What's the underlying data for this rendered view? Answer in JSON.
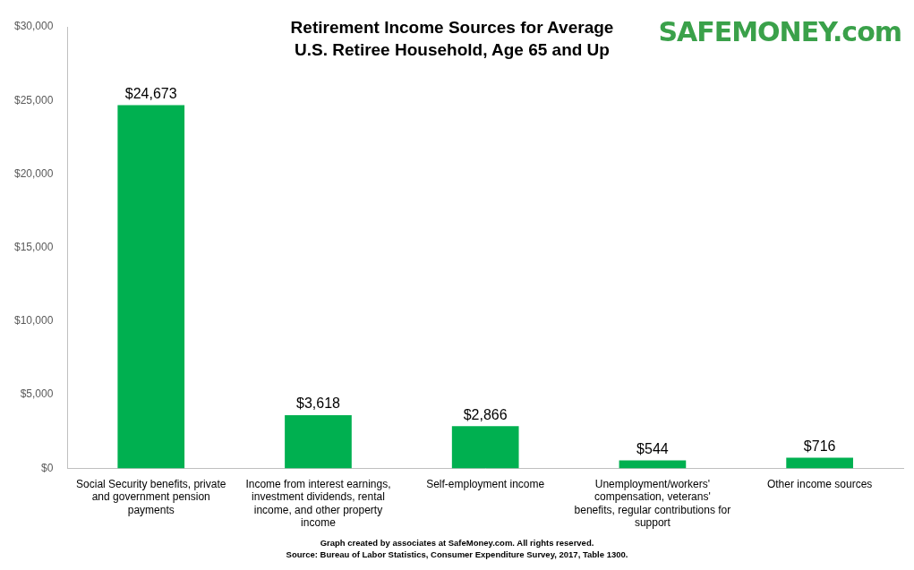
{
  "chart_data": {
    "type": "bar",
    "title": [
      "Retirement Income Sources for Average",
      "U.S. Retiree Household, Age 65 and Up"
    ],
    "logo": "SAFEMONEY.com",
    "notes": [
      "Graph created by associates at SafeMoney.com. All rights reserved.",
      "Source: Bureau of Labor Statistics, Consumer Expenditure Survey, 2017, Table 1300."
    ],
    "categories": [
      "Social Security benefits, private and government pension payments",
      "Income from interest earnings, investment dividends, rental income, and other property income",
      "Self-employment income",
      "Unemployment/workers' compensation, veterans' benefits, regular contributions for support",
      "Other income sources"
    ],
    "values": [
      24673,
      3618,
      2866,
      544,
      716
    ],
    "value_labels": [
      "$24,673",
      "$3,618",
      "$2,866",
      "$544",
      "$716"
    ],
    "color": "#00b050",
    "ylim": [
      0,
      30000
    ],
    "yticks": [
      {
        "value": 0,
        "label": "$0"
      },
      {
        "value": 5000,
        "label": "$5,000"
      },
      {
        "value": 10000,
        "label": "$10,000"
      },
      {
        "value": 15000,
        "label": "$15,000"
      },
      {
        "value": 20000,
        "label": "$20,000"
      },
      {
        "value": 25000,
        "label": "$25,000"
      },
      {
        "value": 30000,
        "label": "$30,000"
      }
    ],
    "grid": false,
    "data_labels": true
  }
}
